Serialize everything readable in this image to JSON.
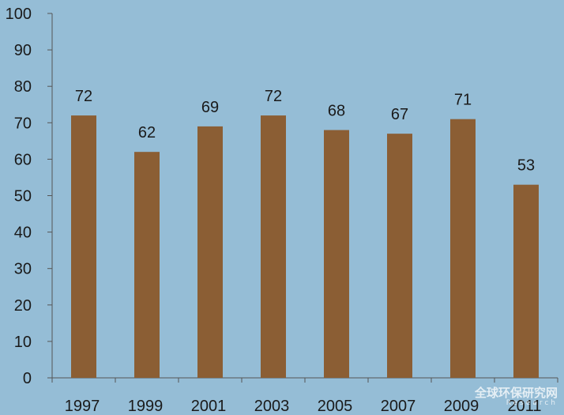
{
  "chart_data": {
    "type": "bar",
    "categories": [
      "1997",
      "1999",
      "2001",
      "2003",
      "2005",
      "2007",
      "2009",
      "2011"
    ],
    "values": [
      72,
      62,
      69,
      72,
      68,
      67,
      71,
      53
    ],
    "data_labels": [
      "72",
      "62",
      "69",
      "72",
      "68",
      "67",
      "71",
      "53"
    ],
    "ylim": [
      0,
      100
    ],
    "yticks": [
      "0",
      "10",
      "20",
      "30",
      "40",
      "50",
      "60",
      "70",
      "80",
      "90",
      "100"
    ],
    "title": "",
    "xlabel": "",
    "ylabel": "",
    "grid": false,
    "legend": "none",
    "colors": {
      "bar": "#8b5e34",
      "background": "#95bdd6",
      "axis": "#555555"
    }
  },
  "watermark": {
    "text": "全球环保研究网",
    "sub": "Research"
  }
}
